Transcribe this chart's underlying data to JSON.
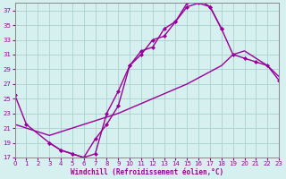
{
  "xlabel": "Windchill (Refroidissement éolien,°C)",
  "bg_color": "#d6efef",
  "grid_color": "#aacfcf",
  "line_color": "#990099",
  "xlim": [
    0,
    23
  ],
  "ylim": [
    17,
    38
  ],
  "yticks": [
    17,
    19,
    21,
    23,
    25,
    27,
    29,
    31,
    33,
    35,
    37
  ],
  "xticks": [
    0,
    1,
    2,
    3,
    4,
    5,
    6,
    7,
    8,
    9,
    10,
    11,
    12,
    13,
    14,
    15,
    16,
    17,
    18,
    19,
    20,
    21,
    22,
    23
  ],
  "curve1_x": [
    0,
    1,
    3,
    4,
    5,
    6,
    7,
    8,
    9,
    10,
    11,
    12,
    13,
    14,
    15,
    16,
    17,
    18
  ],
  "curve1_y": [
    25.5,
    21.5,
    19.0,
    18.0,
    17.5,
    17.0,
    19.5,
    21.5,
    24.0,
    29.5,
    31.0,
    33.0,
    33.5,
    35.5,
    37.5,
    38.0,
    37.5,
    34.5
  ],
  "curve2_x": [
    3,
    4,
    5,
    6,
    7,
    8,
    9,
    10,
    11,
    12,
    13,
    14,
    15,
    16,
    17,
    18,
    19,
    20,
    21,
    22,
    23
  ],
  "curve2_y": [
    19.0,
    18.0,
    17.5,
    17.0,
    17.5,
    23.0,
    26.0,
    29.5,
    31.5,
    32.0,
    34.5,
    35.5,
    38.0,
    38.5,
    37.5,
    34.5,
    31.0,
    30.5,
    30.0,
    29.5,
    27.5
  ],
  "curve3_x": [
    0,
    3,
    6,
    9,
    12,
    15,
    18,
    19,
    20,
    21,
    22,
    23
  ],
  "curve3_y": [
    21.5,
    20.0,
    21.5,
    23.0,
    25.0,
    27.0,
    29.5,
    31.0,
    31.5,
    30.5,
    29.5,
    28.0
  ],
  "marker": "D",
  "markersize": 2.5,
  "linewidth": 1.0
}
